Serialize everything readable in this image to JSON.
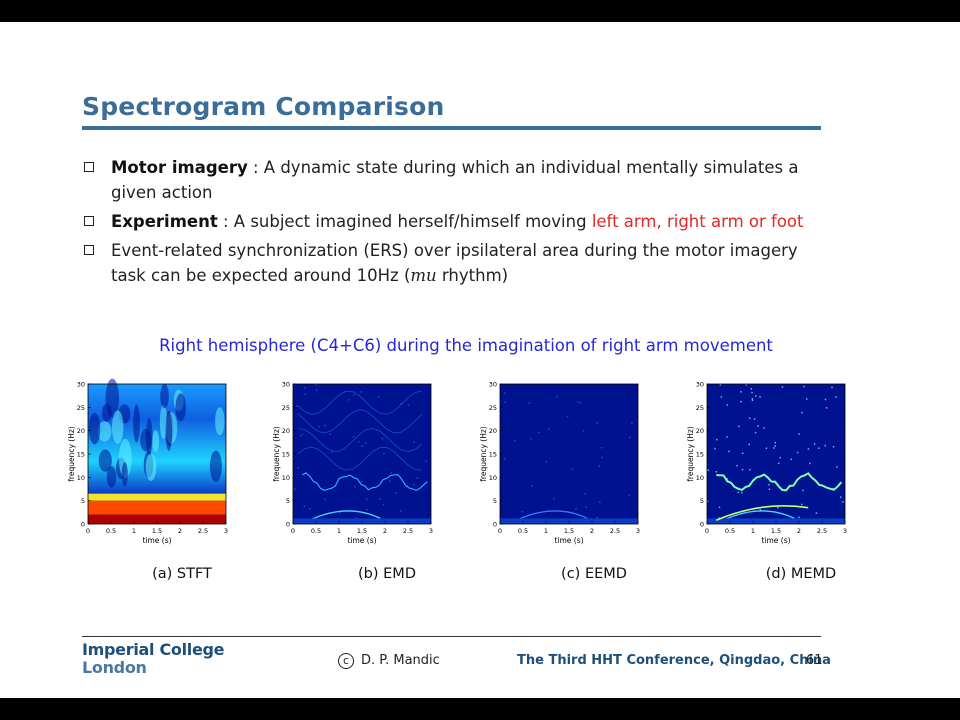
{
  "slide": {
    "title": "Spectrogram Comparison",
    "bullets": [
      {
        "term": "Motor imagery",
        "text": " : A dynamic state during which an individual mentally simulates a given action"
      },
      {
        "term": "Experiment",
        "text": " : A subject imagined herself/himself moving ",
        "highlight": "left arm, right arm or foot"
      },
      {
        "text_before": "Event-related synchronization (ERS) over ipsilateral area during the motor imagery task can be expected around 10Hz (",
        "math": "mu",
        "text_after": " rhythm)"
      }
    ],
    "figure_caption": "Right hemisphere (C4+C6) during the imagination of right arm movement",
    "panels": [
      {
        "caption": "(a) STFT"
      },
      {
        "caption": "(b) EMD"
      },
      {
        "caption": "(c) EEMD"
      },
      {
        "caption": "(d) MEMD"
      }
    ],
    "axis": {
      "xlabel": "time (s)",
      "ylabel": "frequency (Hz)",
      "xticks": [
        "0",
        "0.5",
        "1",
        "1.5",
        "2",
        "2.5",
        "3"
      ],
      "yticks": [
        "0",
        "5",
        "10",
        "15",
        "20",
        "25",
        "30"
      ]
    },
    "footer": {
      "logo_line1": "Imperial College",
      "logo_line2": "London",
      "copyright_symbol": "c",
      "author": "D. P. Mandic",
      "conference": "The Third HHT Conference, Qingdao, China",
      "page": "61"
    }
  },
  "colors": {
    "title": "#3a6d98",
    "highlight": "#e32626",
    "caption": "#2727d8",
    "background_map": "#00128f"
  }
}
